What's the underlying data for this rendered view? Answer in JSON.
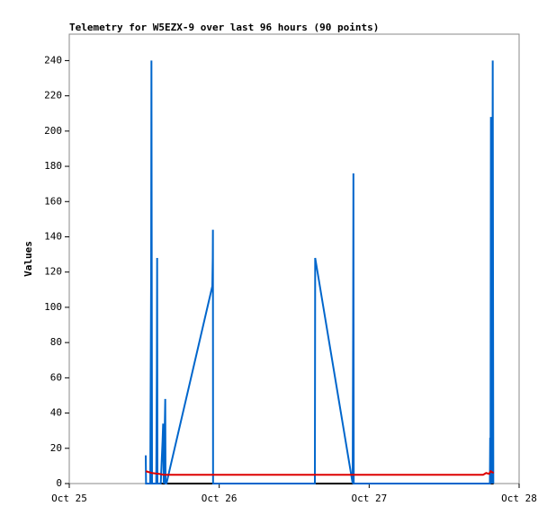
{
  "chart_data": {
    "type": "line",
    "title": "Telemetry for W5EZX-9 over last 96 hours (90 points)",
    "ylabel": "Values",
    "xlim": [
      0,
      3
    ],
    "xticks": [
      {
        "value": 0,
        "label": "Oct 25"
      },
      {
        "value": 1,
        "label": "Oct 26"
      },
      {
        "value": 2,
        "label": "Oct 27"
      },
      {
        "value": 3,
        "label": "Oct 28"
      }
    ],
    "ylim": [
      0,
      255
    ],
    "yticks": [
      0,
      20,
      40,
      60,
      80,
      100,
      120,
      140,
      160,
      180,
      200,
      220,
      240
    ],
    "series": [
      {
        "color": "#000000",
        "x": [
          0.51,
          2.83
        ],
        "values": [
          0,
          0
        ]
      },
      {
        "color": "#0066cc",
        "x": [
          0.51,
          0.512,
          0.54,
          0.546,
          0.548,
          0.55,
          0.552,
          0.58,
          0.584,
          0.586,
          0.588,
          0.61,
          0.618,
          0.622,
          0.626,
          0.63,
          0.64,
          0.642,
          0.648,
          0.954,
          0.957,
          0.958,
          0.959,
          1.638,
          1.64,
          1.89,
          1.893,
          1.895,
          1.897,
          2.805,
          2.807,
          2.809,
          2.812,
          2.814,
          2.816,
          2.818,
          2.82,
          2.824,
          2.826,
          2.828
        ],
        "values": [
          16,
          0,
          0,
          120,
          240,
          120,
          0,
          0,
          64,
          128,
          0,
          0,
          16,
          24,
          34,
          0,
          48,
          0,
          0,
          112,
          128,
          144,
          0,
          0,
          128,
          0,
          88,
          176,
          0,
          0,
          26,
          0,
          208,
          0,
          144,
          128,
          0,
          240,
          120,
          0
        ]
      },
      {
        "color": "#dd0000",
        "x": [
          0.51,
          0.55,
          0.6,
          0.63,
          0.65,
          2.76,
          2.78,
          2.8,
          2.81,
          2.83
        ],
        "values": [
          7,
          6,
          5.5,
          5,
          5,
          5,
          6,
          5.5,
          7,
          6
        ]
      }
    ]
  }
}
